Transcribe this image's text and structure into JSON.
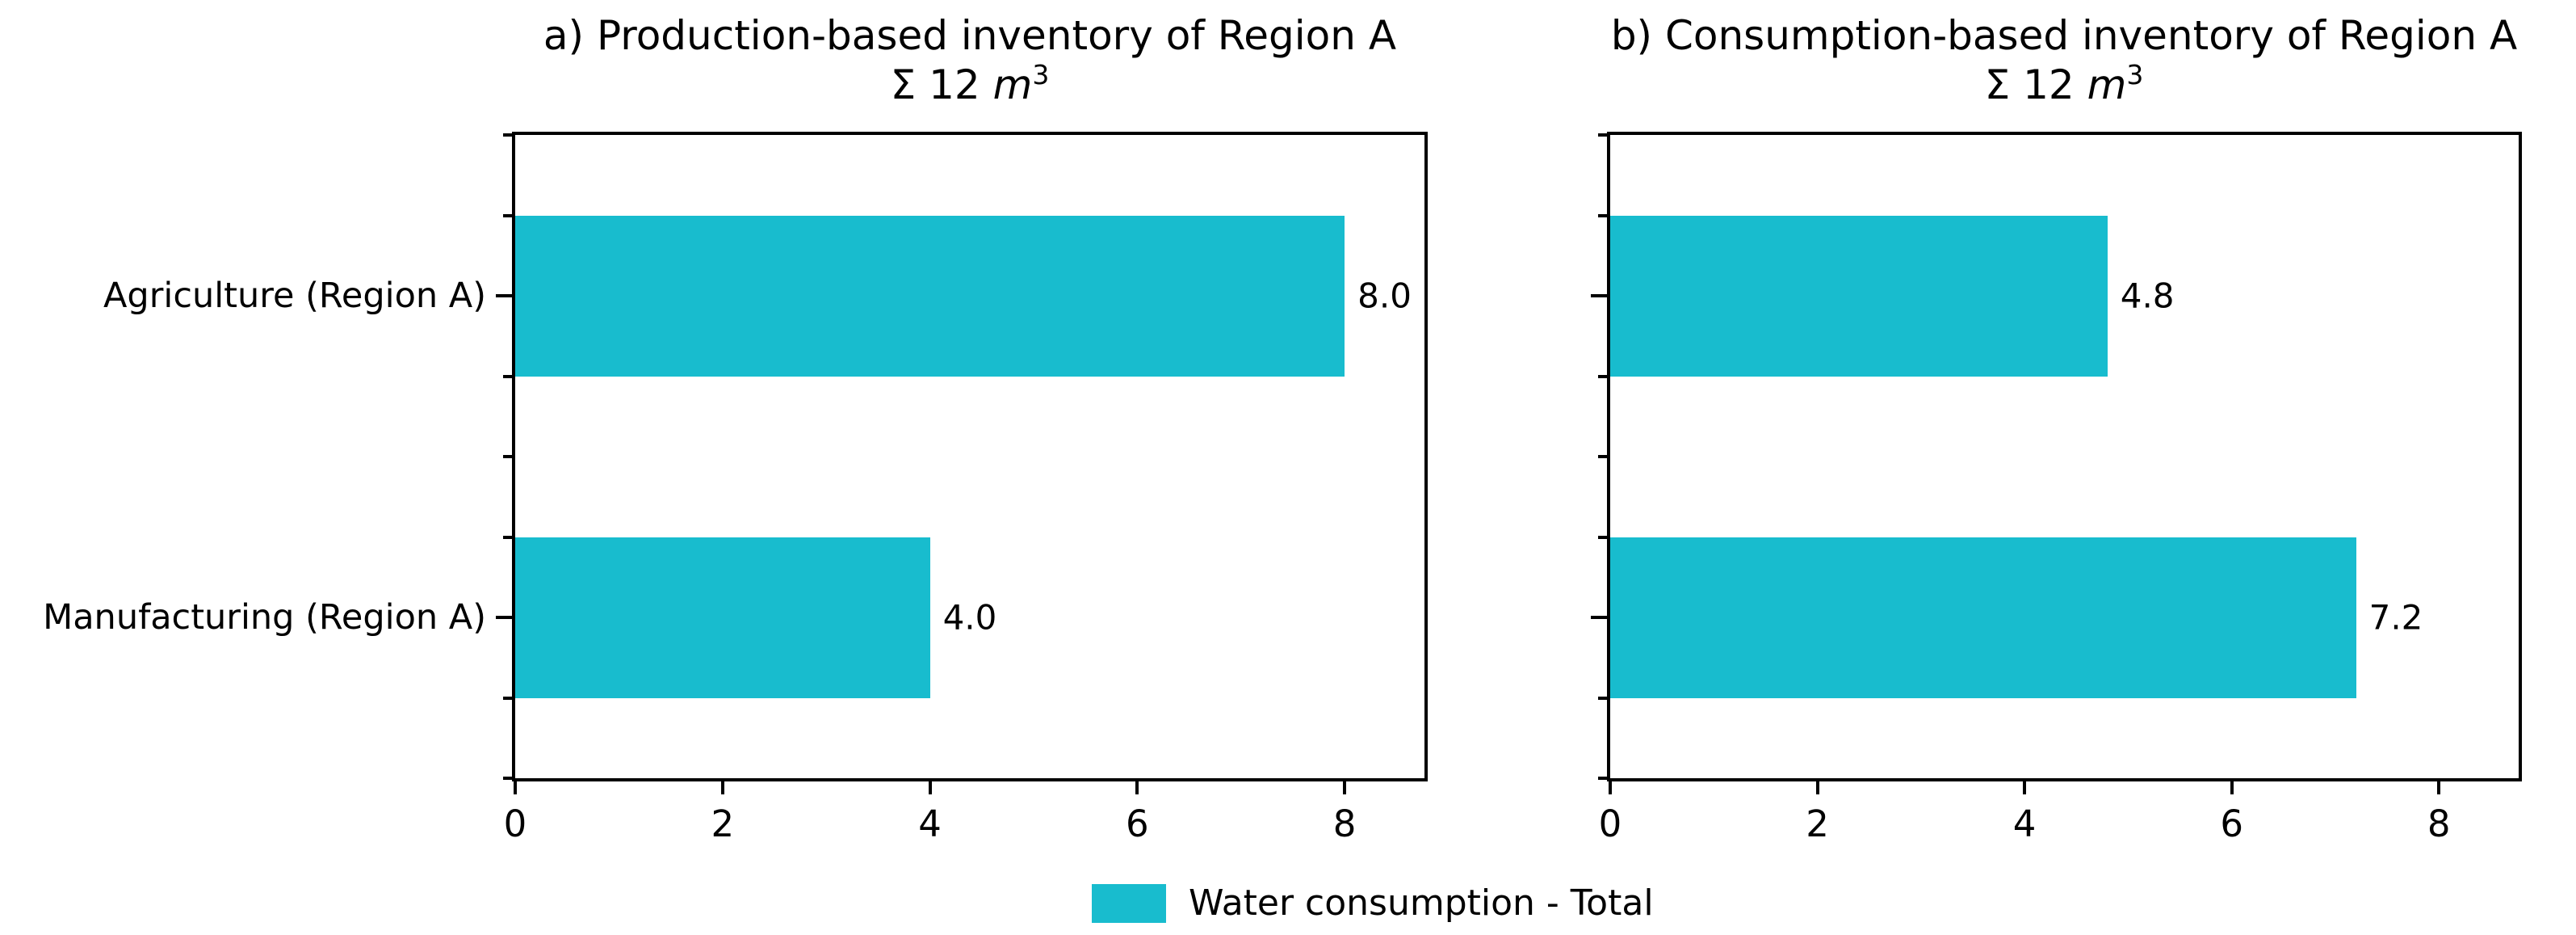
{
  "figure": {
    "background": "#ffffff",
    "bar_color": "#18bcce",
    "axis_color": "#000000",
    "legend": {
      "label": "Water consumption - Total",
      "swatch_color": "#18bcce",
      "position": "lower center"
    }
  },
  "chart_data": [
    {
      "type": "bar",
      "orientation": "horizontal",
      "title": "a) Production-based inventory of Region A",
      "subtitle": {
        "prefix": "Σ 12 ",
        "unit": "m",
        "exponent": "3",
        "text": "Σ 12 m³"
      },
      "categories": [
        "Agriculture (Region A)",
        "Manufacturing (Region A)"
      ],
      "series": [
        {
          "name": "Water consumption - Total",
          "values": [
            8.0,
            4.0
          ]
        }
      ],
      "value_labels": [
        "8.0",
        "4.0"
      ],
      "xlim": [
        0,
        8.77
      ],
      "xticks": [
        "0",
        "2",
        "4",
        "6",
        "8"
      ],
      "show_category_labels": true,
      "grid": false
    },
    {
      "type": "bar",
      "orientation": "horizontal",
      "title": "b) Consumption-based inventory of Region A",
      "subtitle": {
        "prefix": "Σ 12 ",
        "unit": "m",
        "exponent": "3",
        "text": "Σ 12 m³"
      },
      "categories": [
        "Agriculture (Region A)",
        "Manufacturing (Region A)"
      ],
      "series": [
        {
          "name": "Water consumption - Total",
          "values": [
            4.8,
            7.2
          ]
        }
      ],
      "value_labels": [
        "4.8",
        "7.2"
      ],
      "xlim": [
        0,
        8.77
      ],
      "xticks": [
        "0",
        "2",
        "4",
        "6",
        "8"
      ],
      "show_category_labels": false,
      "grid": false
    }
  ]
}
